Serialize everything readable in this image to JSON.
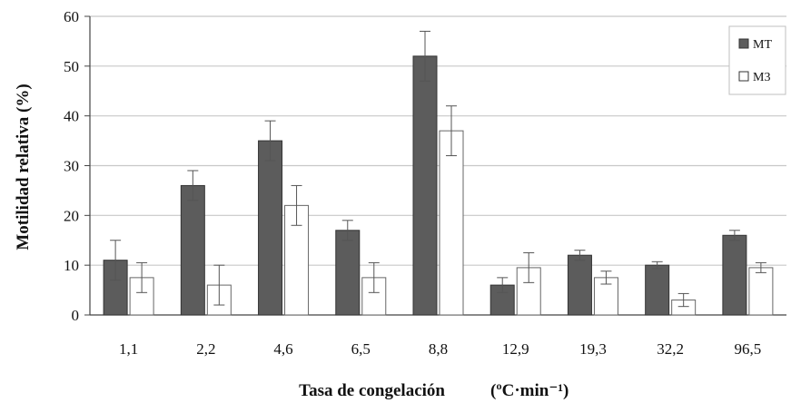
{
  "chart_data": {
    "type": "bar",
    "categories": [
      "1,1",
      "2,2",
      "4,6",
      "6,5",
      "8,8",
      "12,9",
      "19,3",
      "32,2",
      "96,5"
    ],
    "series": [
      {
        "name": "MT",
        "color": "#5c5c5c",
        "values": [
          11,
          26,
          35,
          17,
          52,
          6,
          12,
          10,
          16
        ],
        "errors": [
          4,
          3,
          4,
          2,
          5,
          1.5,
          1,
          0.7,
          1
        ]
      },
      {
        "name": "M3",
        "color": "#ffffff",
        "values": [
          7.5,
          6,
          22,
          7.5,
          37,
          9.5,
          7.5,
          3,
          9.5
        ],
        "errors": [
          3,
          4,
          4,
          3,
          5,
          3,
          1.3,
          1.3,
          1
        ]
      }
    ],
    "xlabel": "Tasa de congelación",
    "xlabel_unit": "(ºC·min⁻¹)",
    "ylabel": "Motilidad relativa (%)",
    "ylim": [
      0,
      60
    ],
    "yticks": [
      0,
      10,
      20,
      30,
      40,
      50,
      60
    ],
    "grid": true,
    "legend_position": "top-right"
  }
}
